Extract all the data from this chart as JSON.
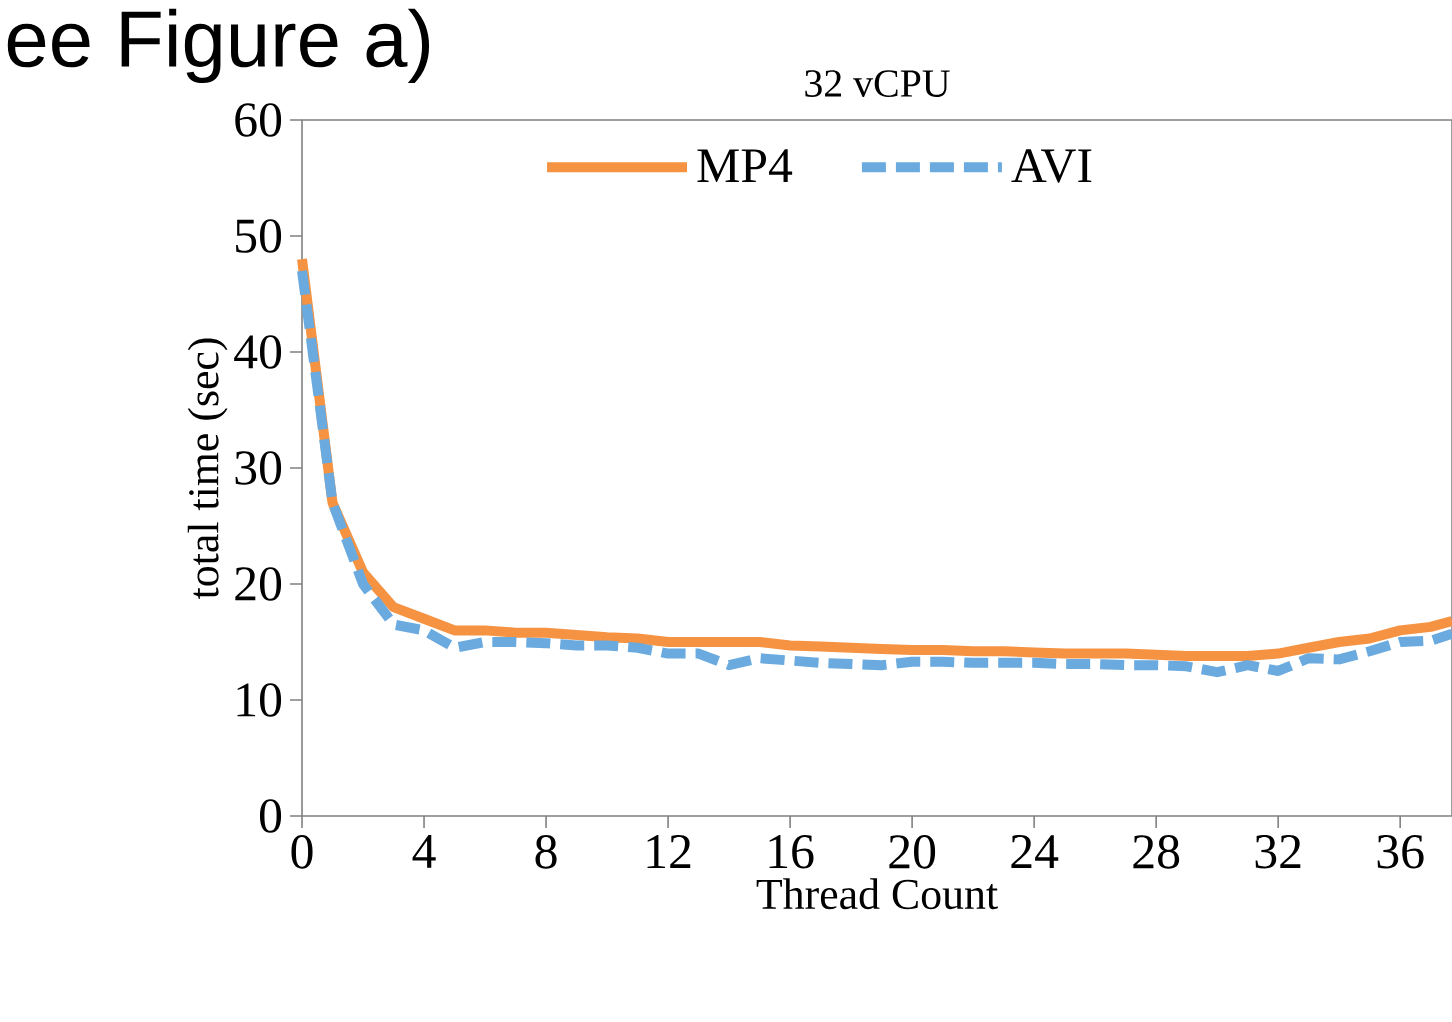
{
  "chart_data": {
    "type": "line",
    "title": "32 vCPU",
    "xlabel": "Thread Count",
    "ylabel": "total time (sec)",
    "annotations": [
      "ee Figure a)"
    ],
    "x": [
      0,
      1,
      2,
      3,
      4,
      5,
      6,
      7,
      8,
      9,
      10,
      11,
      12,
      13,
      14,
      15,
      16,
      17,
      18,
      19,
      20,
      21,
      22,
      23,
      24,
      25,
      26,
      27,
      28,
      29,
      30,
      31,
      32,
      33,
      34,
      35,
      36,
      37,
      37.7
    ],
    "series": [
      {
        "name": "MP4",
        "color": "#f59342",
        "line_style": "solid",
        "values": [
          48,
          27,
          21,
          18,
          17,
          16,
          16,
          15.8,
          15.8,
          15.6,
          15.4,
          15.3,
          15,
          15,
          15,
          15,
          14.7,
          14.6,
          14.5,
          14.4,
          14.3,
          14.3,
          14.2,
          14.2,
          14.1,
          14,
          14,
          14,
          13.9,
          13.8,
          13.8,
          13.8,
          14,
          14.5,
          15,
          15.3,
          16,
          16.3,
          16.8
        ]
      },
      {
        "name": "AVI",
        "color": "#6aaade",
        "line_style": "dashed",
        "values": [
          47,
          27,
          20,
          16.5,
          16,
          14.5,
          15,
          15,
          14.9,
          14.7,
          14.7,
          14.5,
          14,
          14,
          13,
          13.6,
          13.4,
          13.2,
          13.1,
          13,
          13.3,
          13.3,
          13.2,
          13.2,
          13.2,
          13.1,
          13.1,
          13,
          13,
          12.9,
          12.4,
          13,
          12.5,
          13.6,
          13.5,
          14.2,
          15,
          15.1,
          15.7
        ]
      }
    ],
    "xlim": [
      0,
      37.7
    ],
    "ylim": [
      0,
      60
    ],
    "xticks": [
      0,
      4,
      8,
      12,
      16,
      20,
      24,
      28,
      32,
      36
    ],
    "yticks": [
      0,
      10,
      20,
      30,
      40,
      50,
      60
    ],
    "legend": "top",
    "marker": "none"
  }
}
